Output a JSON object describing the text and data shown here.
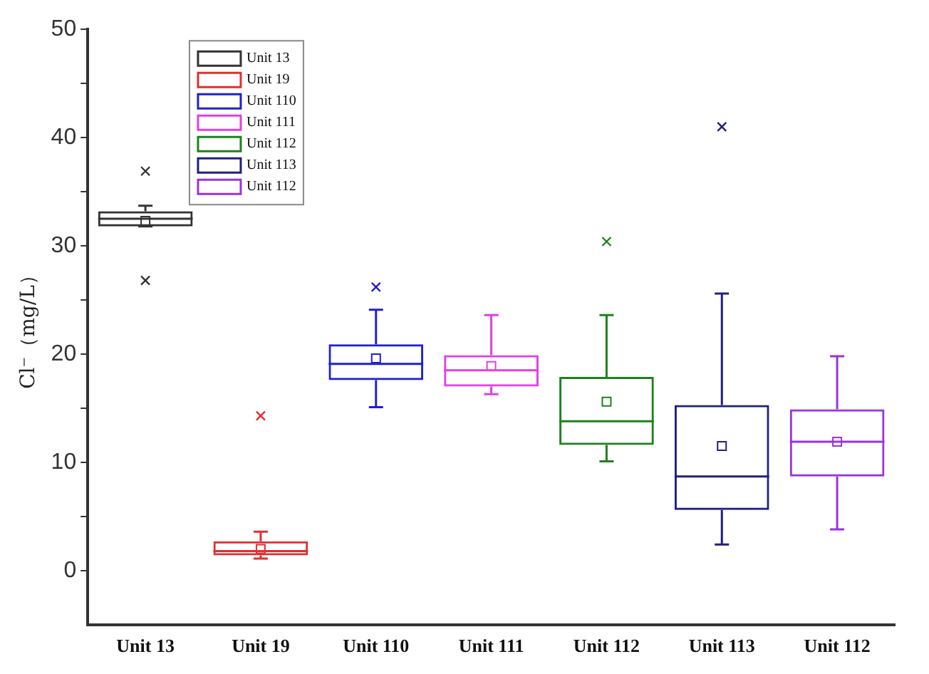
{
  "chart_data": {
    "type": "box",
    "ylabel": "Cl⁻（mg/L）",
    "categories": [
      "Unit 13",
      "Unit 19",
      "Unit 110",
      "Unit 111",
      "Unit 112",
      "Unit 113",
      "Unit 112"
    ],
    "ylim": [
      -5,
      50
    ],
    "yticks": [
      0,
      {
        "value": 5,
        "label": null
      },
      10,
      {
        "value": 15,
        "label": null
      },
      20,
      {
        "value": 25,
        "label": null
      },
      30,
      {
        "value": 35,
        "label": null
      },
      40,
      {
        "value": 45,
        "label": null
      },
      50
    ],
    "grid": false,
    "legend": "top left",
    "series": [
      {
        "name": "Unit 13",
        "color": "#333333",
        "boxes": [
          {
            "low": 31.8,
            "q1": 31.8,
            "median": 32.5,
            "q3": 33.2,
            "high": 33.7,
            "mean": 32.3,
            "outliers": [
              36.9,
              26.8
            ]
          },
          null,
          null,
          null,
          null,
          null,
          null
        ]
      },
      {
        "name": "Unit 19",
        "color": "#e03030",
        "boxes": [
          null,
          {
            "low": 1.1,
            "q1": 1.4,
            "median": 1.8,
            "q3": 2.7,
            "high": 3.6,
            "mean": 2,
            "outliers": [
              14.3
            ]
          },
          null,
          null,
          null,
          null,
          null
        ]
      },
      {
        "name": "Unit 110",
        "color": "#2020d0",
        "boxes": [
          null,
          null,
          {
            "low": 15.1,
            "q1": 17.6,
            "median": 19.1,
            "q3": 20.9,
            "high": 24.1,
            "mean": 19.6,
            "outliers": [
              26.2
            ]
          },
          null,
          null,
          null,
          null
        ]
      },
      {
        "name": "Unit 111",
        "color": "#e040e0",
        "boxes": [
          null,
          null,
          null,
          {
            "low": 16.3,
            "q1": 17,
            "median": 18.5,
            "q3": 19.9,
            "high": 23.6,
            "mean": 18.9
          },
          null,
          null,
          null
        ]
      },
      {
        "name": "Unit 112",
        "color": "#208020",
        "boxes": [
          null,
          null,
          null,
          null,
          {
            "low": 10.1,
            "q1": 11.6,
            "median": 13.8,
            "q3": 17.9,
            "high": 23.6,
            "mean": 15.6,
            "outliers": [
              30.4
            ]
          },
          null,
          null
        ]
      },
      {
        "name": "Unit 113",
        "color": "#202080",
        "boxes": [
          null,
          null,
          null,
          null,
          null,
          {
            "low": 2.4,
            "q1": 5.6,
            "median": 8.7,
            "q3": 15.3,
            "high": 25.6,
            "mean": 11.5,
            "outliers": [
              41
            ]
          },
          null
        ]
      },
      {
        "name": "Unit 112",
        "color": "#9933dd",
        "boxes": [
          null,
          null,
          null,
          null,
          null,
          null,
          {
            "low": 3.8,
            "q1": 8.7,
            "median": 11.9,
            "q3": 14.9,
            "high": 19.8,
            "mean": 11.9
          }
        ]
      }
    ]
  }
}
